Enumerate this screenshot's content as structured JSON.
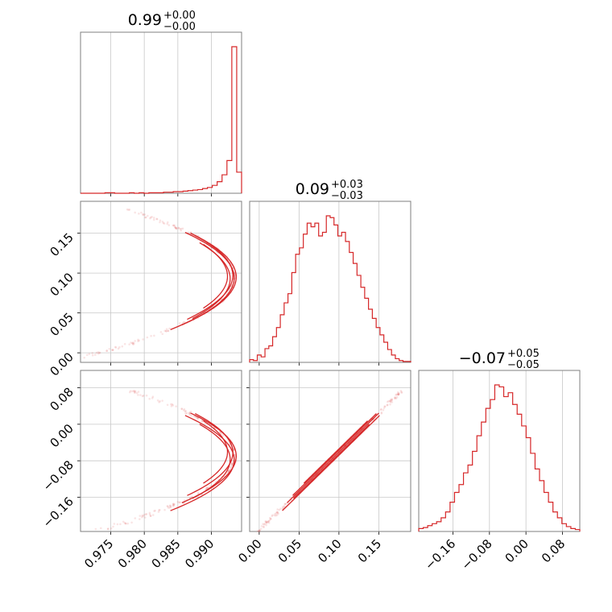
{
  "chart_data": {
    "type": "corner",
    "color": "#d62728",
    "parameters": [
      {
        "title_value": "0.99",
        "title_plus": "+0.00",
        "title_minus": "−0.00",
        "range": [
          0.9705,
          0.9945
        ],
        "ticks": [
          0.975,
          0.98,
          0.985,
          0.99
        ],
        "tick_labels": [
          "0.975",
          "0.980",
          "0.985",
          "0.990"
        ]
      },
      {
        "title_value": "0.09",
        "title_plus": "+0.03",
        "title_minus": "−0.03",
        "range": [
          -0.012,
          0.19
        ],
        "ticks": [
          0.0,
          0.05,
          0.1,
          0.15
        ],
        "tick_labels": [
          "0.00",
          "0.05",
          "0.10",
          "0.15"
        ]
      },
      {
        "title_value": "−0.07",
        "title_plus": "+0.05",
        "title_minus": "−0.05",
        "range": [
          -0.235,
          0.118
        ],
        "ticks": [
          -0.16,
          -0.08,
          0.0,
          0.08
        ],
        "tick_labels": [
          "−0.16",
          "−0.08",
          "0.00",
          "0.08"
        ]
      }
    ],
    "histograms": [
      {
        "param": 0,
        "bins_range": [
          0.9705,
          0.9945
        ],
        "counts": [
          0,
          0,
          0,
          0,
          0,
          1,
          1,
          0,
          0,
          0,
          1,
          0,
          1,
          0,
          1,
          1,
          1,
          2,
          2,
          3,
          3,
          4,
          5,
          6,
          7,
          9,
          11,
          15,
          22,
          35,
          62,
          278,
          40
        ]
      },
      {
        "param": 1,
        "bins_range": [
          -0.012,
          0.19
        ],
        "counts": [
          3,
          2,
          8,
          6,
          15,
          18,
          28,
          38,
          52,
          65,
          75,
          98,
          118,
          125,
          140,
          152,
          148,
          152,
          138,
          142,
          160,
          158,
          150,
          138,
          142,
          132,
          120,
          108,
          95,
          82,
          70,
          58,
          48,
          38,
          30,
          22,
          14,
          8,
          4,
          2,
          1,
          1
        ]
      },
      {
        "param": 2,
        "bins_range": [
          -0.235,
          0.118
        ],
        "counts": [
          3,
          4,
          6,
          8,
          10,
          14,
          20,
          30,
          40,
          48,
          60,
          68,
          82,
          98,
          112,
          126,
          135,
          150,
          148,
          138,
          142,
          130,
          120,
          108,
          96,
          80,
          64,
          52,
          40,
          30,
          20,
          14,
          8,
          5,
          3,
          2
        ]
      }
    ],
    "grid": true,
    "legend": "none"
  }
}
